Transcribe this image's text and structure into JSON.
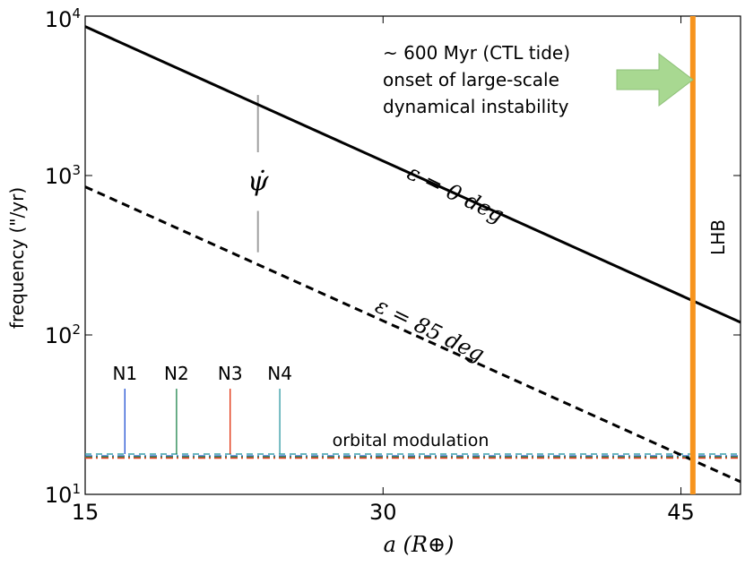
{
  "chart_data": {
    "type": "line",
    "xscale": "linear",
    "yscale": "log",
    "xlim": [
      15,
      48
    ],
    "ylim": [
      10,
      10000
    ],
    "xticks": [
      {
        "value": 15,
        "label": "15"
      },
      {
        "value": 30,
        "label": "30"
      },
      {
        "value": 45,
        "label": "45"
      }
    ],
    "yticks": [
      {
        "value": 10,
        "base": "10",
        "exp": "1"
      },
      {
        "value": 100,
        "base": "10",
        "exp": "2"
      },
      {
        "value": 1000,
        "base": "10",
        "exp": "3"
      },
      {
        "value": 10000,
        "base": "10",
        "exp": "4"
      }
    ],
    "xlabel": "a (R⊕)",
    "ylabel": "frequency (\"/yr)",
    "series": [
      {
        "name": "ε = 0 deg",
        "style": "solid",
        "color": "#000000",
        "x": [
          15,
          48
        ],
        "y": [
          8600,
          120
        ]
      },
      {
        "name": "ε = 85 deg",
        "style": "dashed",
        "color": "#000000",
        "x": [
          15,
          48
        ],
        "y": [
          850,
          12
        ]
      }
    ],
    "series_labels": {
      "eps0": {
        "text": "ε = 0 deg",
        "x": 33.5,
        "y": 700,
        "angle": 26
      },
      "eps85": {
        "text": "ε = 85 deg",
        "x": 32.2,
        "y": 98,
        "angle": 26
      }
    },
    "modulation_lines": [
      {
        "color": "#3a9fa8",
        "y": 17.9,
        "style": "dashed"
      },
      {
        "color": "#2f5bd6",
        "y": 17.4,
        "style": "dashdot"
      },
      {
        "color": "#2e8b57",
        "y": 17.2,
        "style": "dashdot"
      },
      {
        "color": "#e23b1a",
        "y": 16.9,
        "style": "dashdot"
      }
    ],
    "markers": [
      {
        "label": "N1",
        "x": 17.0,
        "color": "#2f5bd6",
        "y_top": 46
      },
      {
        "label": "N2",
        "x": 19.6,
        "color": "#2e8b57",
        "y_top": 46
      },
      {
        "label": "N3",
        "x": 22.3,
        "color": "#e23b1a",
        "y_top": 46
      },
      {
        "label": "N4",
        "x": 24.8,
        "color": "#3a9fa8",
        "y_top": 46
      }
    ],
    "vline": {
      "label": "LHB",
      "x": 45.6,
      "color": "#f7941d"
    },
    "psi": {
      "label": "ψ̇",
      "x": 23.7,
      "y_low": 330,
      "y_high": 3200,
      "gap_low": 600,
      "gap_high": 1400
    },
    "annotations": {
      "orbital": "orbital modulation",
      "instability": [
        "~ 600 Myr (CTL tide)",
        "onset of large-scale",
        "dynamical instability"
      ]
    },
    "arrow_color": "#a8d891"
  }
}
